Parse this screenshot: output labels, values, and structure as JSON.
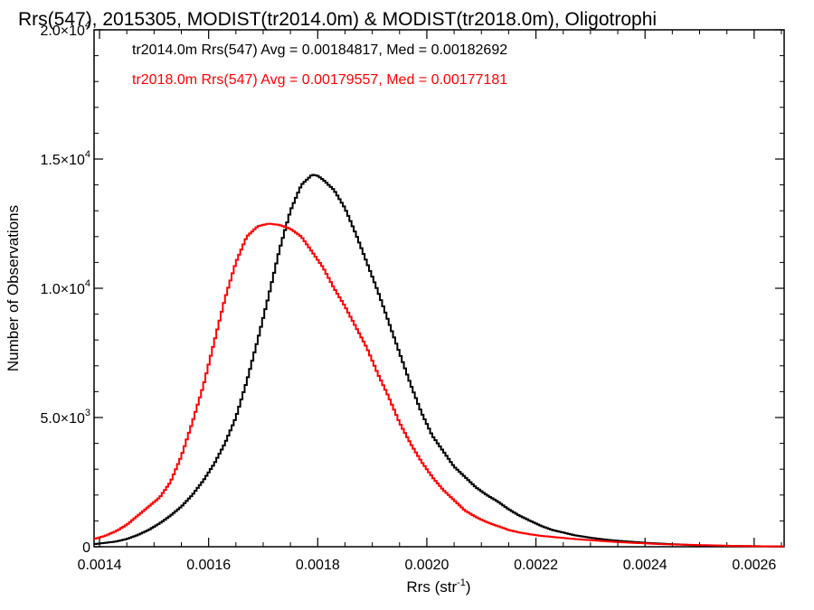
{
  "chart_data": {
    "type": "line",
    "title": "Rrs(547), 2015305, MODIST(tr2014.0m) & MODIST(tr2018.0m), Oligotrophi",
    "xlabel_base": "Rrs (str",
    "xlabel_sup": "-1",
    "xlabel_end": ")",
    "ylabel": "Number of Observations",
    "xlim": [
      0.00139,
      0.002655
    ],
    "ylim": [
      0,
      20000
    ],
    "x_ticks": [
      {
        "value": 0.0014,
        "label": "0.0014"
      },
      {
        "value": 0.0016,
        "label": "0.0016"
      },
      {
        "value": 0.0018,
        "label": "0.0018"
      },
      {
        "value": 0.002,
        "label": "0.0020"
      },
      {
        "value": 0.0022,
        "label": "0.0022"
      },
      {
        "value": 0.0024,
        "label": "0.0024"
      },
      {
        "value": 0.0026,
        "label": "0.0026"
      }
    ],
    "y_ticks": [
      {
        "value": 0,
        "mant": "0",
        "exp": ""
      },
      {
        "value": 5000,
        "mant": "5.0×10",
        "exp": "3"
      },
      {
        "value": 10000,
        "mant": "1.0×10",
        "exp": "4"
      },
      {
        "value": 15000,
        "mant": "1.5×10",
        "exp": "4"
      },
      {
        "value": 20000,
        "mant": "2.0×10",
        "exp": "4"
      }
    ],
    "annotations": [
      {
        "text": "tr2014.0m Rrs(547) Avg = 0.00184817, Med = 0.00182692",
        "color": "#000000"
      },
      {
        "text": "tr2018.0m Rrs(547) Avg = 0.00179557, Med = 0.00177181",
        "color": "#ff0000"
      }
    ],
    "series": [
      {
        "color": "#000000",
        "x": [
          0.00139,
          0.00141,
          0.00143,
          0.00145,
          0.00147,
          0.00149,
          0.00151,
          0.00153,
          0.00155,
          0.00157,
          0.00159,
          0.00161,
          0.00163,
          0.00165,
          0.00167,
          0.00169,
          0.00171,
          0.00173,
          0.00175,
          0.00177,
          0.00179,
          0.0018,
          0.00181,
          0.00183,
          0.00185,
          0.00187,
          0.00189,
          0.00191,
          0.00193,
          0.00195,
          0.00197,
          0.00199,
          0.00201,
          0.00203,
          0.00205,
          0.00207,
          0.00209,
          0.00211,
          0.00213,
          0.00215,
          0.00217,
          0.00219,
          0.00221,
          0.00223,
          0.00225,
          0.00227,
          0.00229,
          0.00231,
          0.00233,
          0.00235,
          0.00237,
          0.00239,
          0.00241,
          0.00243,
          0.00245,
          0.00247,
          0.00249,
          0.00251,
          0.00253,
          0.00255,
          0.00257,
          0.00259,
          0.00261,
          0.00263,
          0.002655
        ],
        "y": [
          100,
          150,
          200,
          300,
          450,
          650,
          900,
          1200,
          1550,
          2000,
          2550,
          3200,
          4000,
          5000,
          6400,
          8000,
          9700,
          11500,
          13000,
          14000,
          14400,
          14350,
          14200,
          13800,
          13100,
          12100,
          11000,
          9900,
          8700,
          7500,
          6300,
          5200,
          4300,
          3700,
          3100,
          2700,
          2300,
          2000,
          1750,
          1450,
          1200,
          1000,
          800,
          650,
          550,
          450,
          380,
          320,
          270,
          230,
          200,
          170,
          140,
          120,
          100,
          80,
          60,
          50,
          40,
          35,
          30,
          25,
          20,
          15,
          10
        ]
      },
      {
        "color": "#ff0000",
        "x": [
          0.00139,
          0.00141,
          0.00143,
          0.00145,
          0.00147,
          0.00149,
          0.00151,
          0.00153,
          0.00155,
          0.00157,
          0.00159,
          0.00161,
          0.00163,
          0.00165,
          0.00167,
          0.00169,
          0.00171,
          0.00173,
          0.00175,
          0.00177,
          0.00179,
          0.00181,
          0.00183,
          0.00185,
          0.00187,
          0.00189,
          0.00191,
          0.00193,
          0.00195,
          0.00197,
          0.00199,
          0.00201,
          0.00203,
          0.00205,
          0.00207,
          0.00209,
          0.00211,
          0.00213,
          0.00215,
          0.00217,
          0.00219,
          0.00221,
          0.00223,
          0.00225,
          0.00227,
          0.00229,
          0.00231,
          0.00233,
          0.00235,
          0.00237,
          0.00239,
          0.00241,
          0.00243,
          0.00245,
          0.00247,
          0.00249,
          0.00251,
          0.00253,
          0.00255,
          0.00257,
          0.00259,
          0.00261,
          0.00263,
          0.002655
        ],
        "y": [
          300,
          420,
          600,
          850,
          1200,
          1550,
          1900,
          2500,
          3500,
          4800,
          6200,
          7900,
          9600,
          11000,
          12000,
          12400,
          12500,
          12450,
          12300,
          12000,
          11400,
          10800,
          10000,
          9300,
          8500,
          7700,
          6700,
          5800,
          4800,
          4000,
          3300,
          2700,
          2200,
          1800,
          1400,
          1150,
          950,
          800,
          650,
          550,
          480,
          420,
          380,
          340,
          300,
          270,
          240,
          210,
          180,
          160,
          140,
          120,
          100,
          90,
          80,
          70,
          60,
          50,
          40,
          30,
          25,
          20,
          15,
          10
        ]
      }
    ]
  }
}
